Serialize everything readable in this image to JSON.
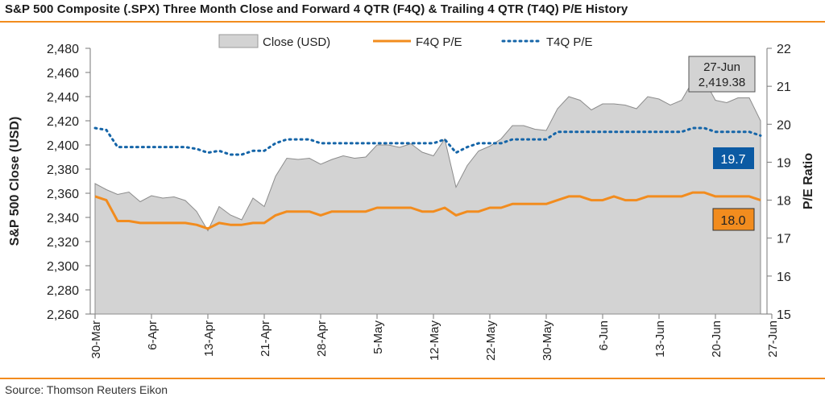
{
  "title": "S&P 500 Composite (.SPX) Three Month Close and Forward 4 QTR (F4Q) & Trailing 4 QTR (T4Q) P/E History",
  "source": "Source: Thomson Reuters Eikon",
  "colors": {
    "accent": "#f28c1e",
    "area": "#d3d3d3",
    "f4q": "#f28c1e",
    "t4q": "#1565a8",
    "t4q_label_bg": "#0b5aa3",
    "f4q_label_bg": "#f28c1e"
  },
  "chart_data": {
    "type": "area",
    "y_left_label": "S&P 500 Close (USD)",
    "y_right_label": "P/E Ratio",
    "y_left_lim": [
      2260,
      2480
    ],
    "y_right_lim": [
      15,
      22
    ],
    "y_left_ticks": [
      "2,480",
      "2,460",
      "2,440",
      "2,420",
      "2,400",
      "2,380",
      "2,360",
      "2,340",
      "2,320",
      "2,300",
      "2,280",
      "2,260"
    ],
    "y_right_ticks": [
      "22",
      "21",
      "20",
      "19",
      "18",
      "17",
      "16",
      "15"
    ],
    "y_left_tick_values": [
      2480,
      2460,
      2440,
      2420,
      2400,
      2380,
      2360,
      2340,
      2320,
      2300,
      2280,
      2260
    ],
    "y_right_tick_values": [
      22,
      21,
      20,
      19,
      18,
      17,
      16,
      15
    ],
    "x_tick_labels": [
      "30-Mar",
      "6-Apr",
      "13-Apr",
      "21-Apr",
      "28-Apr",
      "5-May",
      "12-May",
      "22-May",
      "30-May",
      "6-Jun",
      "13-Jun",
      "20-Jun",
      "27-Jun"
    ],
    "x_tick_indices": [
      0,
      5,
      10,
      15,
      20,
      25,
      30,
      35,
      40,
      45,
      50,
      55,
      60
    ],
    "legend": [
      "Close (USD)",
      "F4Q P/E",
      "T4Q P/E"
    ],
    "legend_position": "top",
    "series": [
      {
        "name": "Close (USD)",
        "type": "area",
        "values": [
          2368,
          2363,
          2359,
          2361,
          2353,
          2358,
          2356,
          2357,
          2354,
          2345,
          2329,
          2349,
          2342,
          2338,
          2356,
          2349,
          2374,
          2389,
          2388,
          2389,
          2384,
          2388,
          2391,
          2389,
          2390,
          2400,
          2400,
          2398,
          2401,
          2394,
          2391,
          2405,
          2365,
          2383,
          2395,
          2399,
          2405,
          2416,
          2416,
          2413,
          2412,
          2430,
          2440,
          2437,
          2429,
          2434,
          2434,
          2433,
          2430,
          2440,
          2438,
          2433,
          2437,
          2453,
          2454,
          2437,
          2435,
          2439,
          2439,
          2420
        ]
      },
      {
        "name": "F4Q P/E",
        "type": "line",
        "values": [
          18.1,
          18.0,
          17.45,
          17.45,
          17.4,
          17.4,
          17.4,
          17.4,
          17.4,
          17.35,
          17.25,
          17.4,
          17.35,
          17.35,
          17.4,
          17.4,
          17.6,
          17.7,
          17.7,
          17.7,
          17.6,
          17.7,
          17.7,
          17.7,
          17.7,
          17.8,
          17.8,
          17.8,
          17.8,
          17.7,
          17.7,
          17.8,
          17.6,
          17.7,
          17.7,
          17.8,
          17.8,
          17.9,
          17.9,
          17.9,
          17.9,
          18.0,
          18.1,
          18.1,
          18.0,
          18.0,
          18.1,
          18.0,
          18.0,
          18.1,
          18.1,
          18.1,
          18.1,
          18.2,
          18.2,
          18.1,
          18.1,
          18.1,
          18.1,
          18.0
        ]
      },
      {
        "name": "T4Q P/E",
        "type": "line",
        "values": [
          19.9,
          19.85,
          19.4,
          19.4,
          19.4,
          19.4,
          19.4,
          19.4,
          19.4,
          19.35,
          19.25,
          19.3,
          19.2,
          19.2,
          19.3,
          19.3,
          19.5,
          19.6,
          19.6,
          19.6,
          19.5,
          19.5,
          19.5,
          19.5,
          19.5,
          19.5,
          19.5,
          19.5,
          19.5,
          19.5,
          19.5,
          19.6,
          19.25,
          19.4,
          19.5,
          19.5,
          19.5,
          19.6,
          19.6,
          19.6,
          19.6,
          19.8,
          19.8,
          19.8,
          19.8,
          19.8,
          19.8,
          19.8,
          19.8,
          19.8,
          19.8,
          19.8,
          19.8,
          19.9,
          19.9,
          19.8,
          19.8,
          19.8,
          19.8,
          19.7
        ]
      }
    ],
    "annotations": [
      {
        "name": "last-close-callout",
        "line1": "27-Jun",
        "line2": "2,419.38"
      },
      {
        "name": "t4q-last-label",
        "text": "19.7"
      },
      {
        "name": "f4q-last-label",
        "text": "18.0"
      }
    ]
  }
}
